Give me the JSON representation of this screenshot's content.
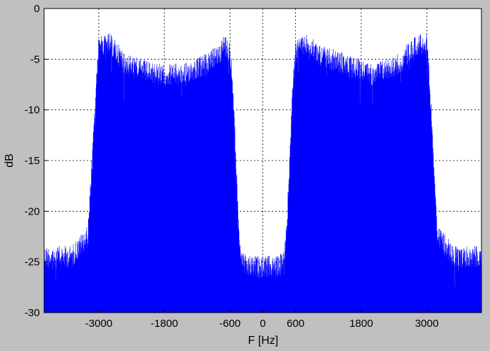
{
  "chart_data": {
    "type": "line",
    "title": "",
    "xlabel": "F [Hz]",
    "ylabel": "dB",
    "xlim": [
      -4000,
      4000
    ],
    "ylim": [
      -30,
      0
    ],
    "xticks": [
      -3000,
      -1800,
      -600,
      0,
      600,
      1800,
      3000
    ],
    "xtick_labels": [
      "-3000",
      "-1800",
      "-600",
      "0",
      "600",
      "1800",
      "3000"
    ],
    "yticks": [
      0,
      -5,
      -10,
      -15,
      -20,
      -25,
      -30
    ],
    "ytick_labels": [
      "0",
      "-5",
      "-10",
      "-15",
      "-20",
      "-25",
      "-30"
    ],
    "grid": true,
    "grid_style": "dotted",
    "series": [
      {
        "color": "#0000ff",
        "envelope": {
          "x": [
            -4000,
            -3500,
            -3200,
            -3050,
            -3000,
            -2800,
            -2500,
            -2000,
            -1500,
            -1000,
            -800,
            -700,
            -600,
            -550,
            -450,
            -400,
            -300,
            0,
            300,
            400,
            450,
            550,
            600,
            700,
            800,
            1000,
            1500,
            2000,
            2500,
            2800,
            3000,
            3050,
            3200,
            3500,
            4000
          ],
          "upper": [
            -24,
            -24,
            -22,
            -8,
            -3,
            -3,
            -5,
            -6,
            -6,
            -5,
            -4,
            -3,
            -4,
            -7,
            -20,
            -24,
            -25,
            -25,
            -25,
            -24,
            -20,
            -7,
            -4,
            -3,
            -3,
            -4,
            -5,
            -6,
            -5,
            -3,
            -3,
            -7,
            -22,
            -24,
            -24
          ]
        }
      }
    ]
  }
}
